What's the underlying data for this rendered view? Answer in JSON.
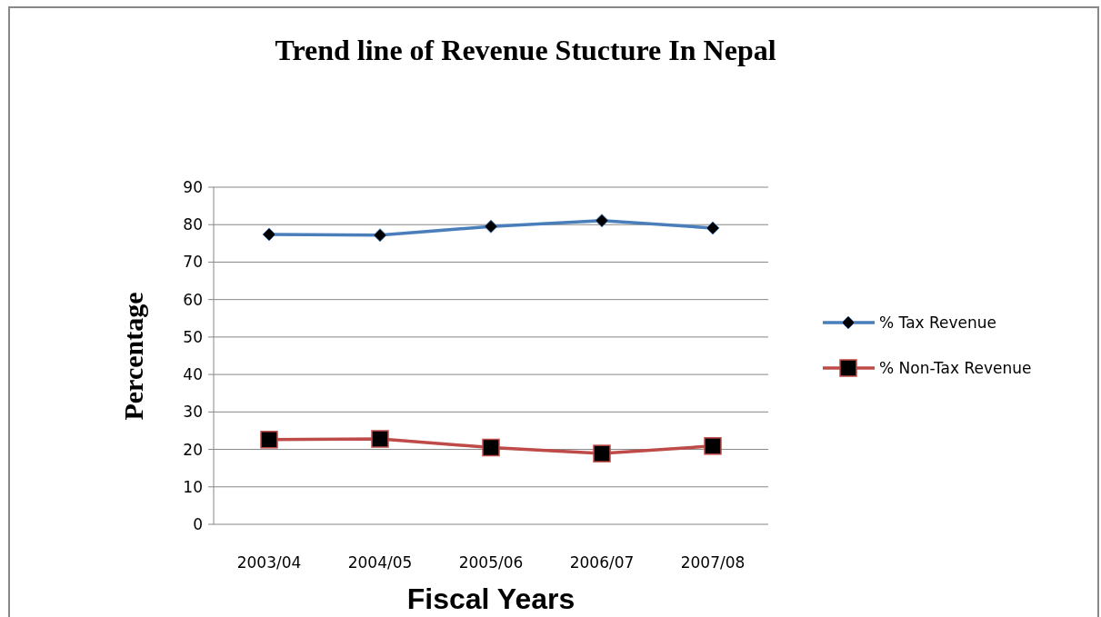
{
  "chart_data": {
    "type": "line",
    "title": "Trend line of Revenue Stucture In Nepal",
    "xlabel": "Fiscal Years",
    "ylabel": "Percentage",
    "categories": [
      "2003/04",
      "2004/05",
      "2005/06",
      "2006/07",
      "2007/08"
    ],
    "series": [
      {
        "name": "% Tax Revenue",
        "color": "#4a7ebb",
        "marker": "diamond",
        "values": [
          77.4,
          77.2,
          79.5,
          81.1,
          79.1
        ]
      },
      {
        "name": "% Non-Tax Revenue",
        "color": "#be4b48",
        "marker": "square",
        "values": [
          22.6,
          22.8,
          20.5,
          18.9,
          20.9
        ]
      }
    ],
    "ylim": [
      0,
      90
    ],
    "yticks": [
      0,
      10,
      20,
      30,
      40,
      50,
      60,
      70,
      80,
      90
    ],
    "grid": "y",
    "legend": "right"
  }
}
